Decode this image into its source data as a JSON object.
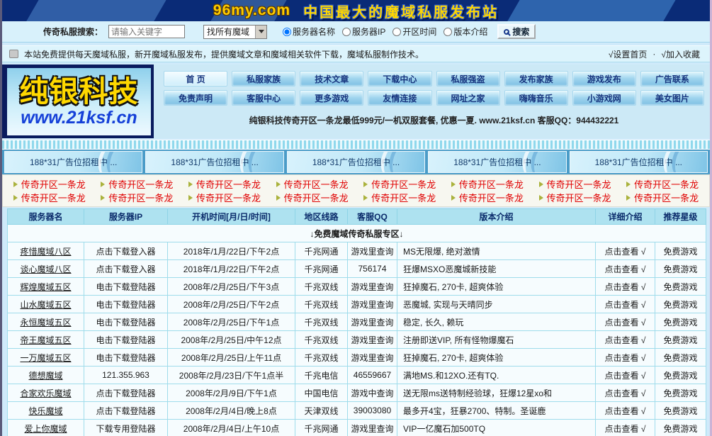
{
  "banner": {
    "site_name": "96my.com",
    "slogan": "中国最大的魔域私服发布站"
  },
  "search": {
    "label": "传奇私服搜索：",
    "placeholder": "请输入关键字",
    "select_value": "找所有魔域",
    "radios": [
      {
        "label": "服务器名称",
        "checked": true
      },
      {
        "label": "服务器IP",
        "checked": false
      },
      {
        "label": "开区时间",
        "checked": false
      },
      {
        "label": "版本介绍",
        "checked": false
      }
    ],
    "button_label": "搜索"
  },
  "notice": {
    "text": "本站免费提供每天魔域私服，新开魔域私服发布，提供魔域文章和魔域相关软件下载，魔域私服制作技术。",
    "set_home": "√设置首页",
    "separator": "·",
    "add_favorite": "√加入收藏"
  },
  "logo": {
    "title": "纯银科技",
    "url": "www.21ksf.cn"
  },
  "nav": {
    "row1": [
      "首 页",
      "私服家族",
      "技术文章",
      "下载中心",
      "私服强盗",
      "发布家族",
      "游戏发布",
      "广告联系"
    ],
    "row2": [
      "免责声明",
      "客服中心",
      "更多游戏",
      "友情连接",
      "网址之家",
      "嗨嗨音乐",
      "小游戏网",
      "美女图片"
    ]
  },
  "promo": "纯银科技传奇开区一条龙最低999元/一机双服套餐, 优惠一夏. www.21ksf.cn 客服QQ：944432221",
  "ad_banners": [
    "188*31广告位招租中 ...",
    "188*31广告位招租中 ...",
    "188*31广告位招租中 ...",
    "188*31广告位招租中 ...",
    "188*31广告位招租中 ..."
  ],
  "quick_links": {
    "row1": [
      "传奇开区一条龙",
      "传奇开区一条龙",
      "传奇开区一条龙",
      "传奇开区一条龙",
      "传奇开区一条龙",
      "传奇开区一条龙",
      "传奇开区一条龙",
      "传奇开区一条龙"
    ],
    "row2": [
      "传奇开区一条龙",
      "传奇开区一条龙",
      "传奇开区一条龙",
      "传奇开区一条龙",
      "传奇开区一条龙",
      "传奇开区一条龙",
      "传奇开区一条龙",
      "传奇开区一条龙"
    ]
  },
  "table": {
    "headers": [
      "服务器名",
      "服务器IP",
      "开机时间[月/日/时间]",
      "地区线路",
      "客服QQ",
      "版本介绍",
      "详细介绍",
      "推荐星级"
    ],
    "zone_banner": "↓免费魔域传奇私服专区↓",
    "rows": [
      [
        "疼惜魔域八区",
        "点击下载登入器",
        "2018年/1月/22日/下午2点",
        "千兆网通",
        "游戏里查询",
        "MS无限爆, 绝对激情",
        "点击查看 √",
        "免费游戏"
      ],
      [
        "谈心魔域八区",
        "点击下载登入器",
        "2018年/1月/22日/下午2点",
        "千兆网通",
        "756174",
        "狂爆MSXO恶魔城新技能",
        "点击查看 √",
        "免费游戏"
      ],
      [
        "辉煌魔域五区",
        "电击下载登陆器",
        "2008年/2月/25日/下午3点",
        "千兆双线",
        "游戏里查询",
        "狂掉魔石, 270卡, 超爽体验",
        "点击查看 √",
        "免费游戏"
      ],
      [
        "山水魔域五区",
        "电击下载登陆器",
        "2008年/2月/25日/下午2点",
        "千兆双线",
        "游戏里查询",
        "恶魔城, 实现与天晴同步",
        "点击查看 √",
        "免费游戏"
      ],
      [
        "永恒魔域五区",
        "电击下载登陆器",
        "2008年/2月/25日/下午1点",
        "千兆双线",
        "游戏里查询",
        "稳定, 长久, 赖玩",
        "点击查看 √",
        "免费游戏"
      ],
      [
        "帝王魔域五区",
        "电击下载登陆器",
        "2008年/2月/25日/中午12点",
        "千兆双线",
        "游戏里查询",
        "注册即送VIP, 所有怪物爆魔石",
        "点击查看 √",
        "免费游戏"
      ],
      [
        "一万魔域五区",
        "电击下载登陆器",
        "2008年/2月/25日/上午11点",
        "千兆双线",
        "游戏里查询",
        "狂掉魔石, 270卡, 超爽体验",
        "点击查看 √",
        "免费游戏"
      ],
      [
        "德想魔域",
        "121.355.963",
        "2008年/2月/23日/下午1点半",
        "千兆电信",
        "46559667",
        "满地MS.和12XO.还有TQ.",
        "点击查看 √",
        "免费游戏"
      ],
      [
        "合家欢乐魔域",
        "点击下载登陆器",
        "2008年/2月/9日/下午1点",
        "中国电信",
        "游戏中查询",
        "送无限ms送特制经验球，狂爆12星xo和",
        "点击查看 √",
        "免费游戏"
      ],
      [
        "快乐魔域",
        "点击下载登陆器",
        "2008年/2月/4日/晚上8点",
        "天津双线",
        "39003080",
        "最多开4宝，狂暴2700、特制。圣诞鹿",
        "点击查看 √",
        "免费游戏"
      ],
      [
        "爱上你魔域",
        "下载专用登陆器",
        "2008年/2月/4日/上午10点",
        "千兆网通",
        "游戏里查询",
        "VIP一亿魔石加500TQ",
        "点击查看 √",
        "免费游戏"
      ]
    ]
  }
}
